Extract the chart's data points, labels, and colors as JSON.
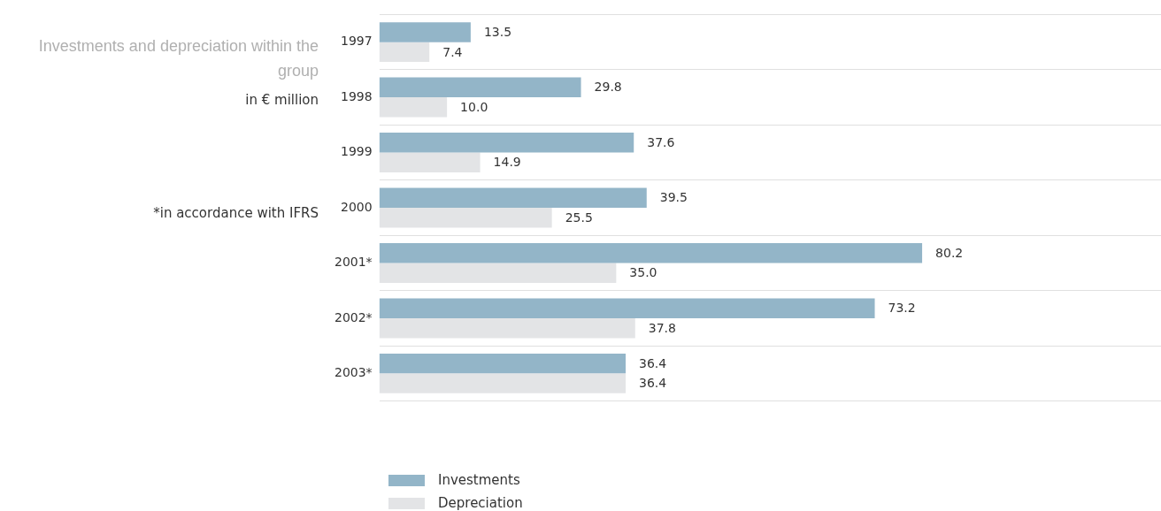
{
  "chart_data": {
    "type": "bar",
    "orientation": "horizontal",
    "title": "Investments and depreciation within the group",
    "subtitle": "in € million",
    "annotations": [
      "*in accordance with IFRS"
    ],
    "categories": [
      "1997",
      "1998",
      "1999",
      "2000",
      "2001*",
      "2002*",
      "2003*"
    ],
    "series": [
      {
        "name": "Investments",
        "color": "#93b5c8",
        "values": [
          13.5,
          29.8,
          37.6,
          39.5,
          80.2,
          73.2,
          36.4
        ],
        "value_labels": [
          "13.5",
          "29.8",
          "37.6",
          "39.5",
          "80.2",
          "73.2",
          "36.4"
        ]
      },
      {
        "name": "Depreciation",
        "color": "#e3e4e6",
        "values": [
          7.4,
          10.0,
          14.9,
          25.5,
          35.0,
          37.8,
          36.4
        ],
        "value_labels": [
          "7.4",
          "10.0",
          "14.9",
          "25.5",
          "35.0",
          "37.8",
          "36.4"
        ]
      }
    ],
    "grid": "y",
    "legend": "bottom left"
  }
}
